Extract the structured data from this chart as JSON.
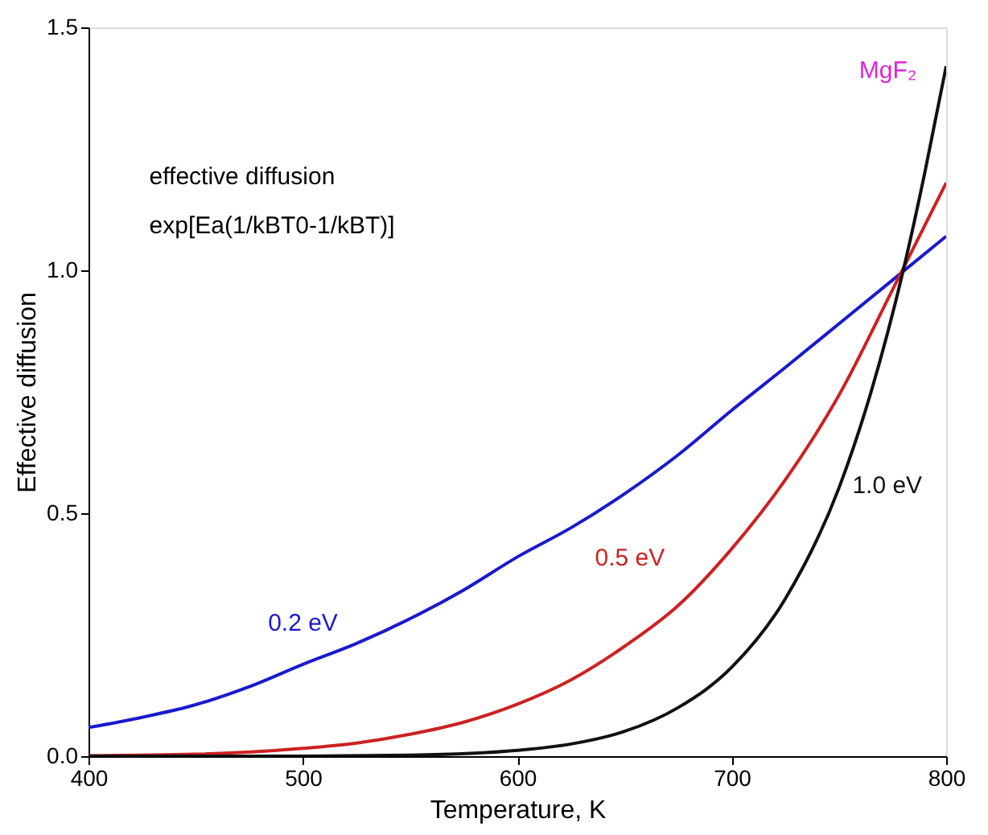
{
  "chart_data": {
    "type": "line",
    "xlabel": "Temperature, K",
    "ylabel": "Effective diffusion",
    "xlim": [
      400,
      800
    ],
    "xticks": [
      400,
      500,
      600,
      700,
      800
    ],
    "ylim": [
      0,
      1.5
    ],
    "yticks": [
      {
        "value": 0,
        "label": "0.0"
      },
      {
        "value": 0.5,
        "label": "0.5"
      },
      {
        "value": 1.0,
        "label": "1.0"
      },
      {
        "value": 1.5,
        "label": "1.5"
      }
    ],
    "grid": false,
    "marker": "none",
    "line_style": "solid",
    "annotations": [
      "MgF₂",
      "effective diffusion",
      "exp[Ea(1/kBT0-1/kBT)]"
    ],
    "series": [
      {
        "name": "0.2 eV",
        "color": "#1a1acc",
        "x": [
          400,
          425,
          450,
          475,
          500,
          525,
          550,
          575,
          600,
          625,
          650,
          675,
          700,
          725,
          750,
          775,
          800
        ],
        "values": [
          0.059,
          0.08,
          0.106,
          0.143,
          0.189,
          0.232,
          0.283,
          0.342,
          0.41,
          0.47,
          0.54,
          0.62,
          0.712,
          0.8,
          0.89,
          0.98,
          1.07
        ]
      },
      {
        "name": "0.5 eV",
        "color": "#cc2222",
        "x": [
          400,
          450,
          500,
          525,
          550,
          575,
          600,
          625,
          650,
          675,
          700,
          725,
          750,
          775,
          800
        ],
        "values": [
          0.001,
          0.004,
          0.016,
          0.027,
          0.045,
          0.07,
          0.107,
          0.157,
          0.226,
          0.31,
          0.427,
          0.569,
          0.743,
          0.96,
          1.18
        ]
      },
      {
        "name": "1.0 eV",
        "color": "#111111",
        "x": [
          400,
          500,
          550,
          600,
          625,
          650,
          675,
          700,
          725,
          750,
          765,
          780,
          790,
          800
        ],
        "values": [
          0.0,
          0.0,
          0.002,
          0.012,
          0.025,
          0.051,
          0.1,
          0.183,
          0.324,
          0.552,
          0.75,
          1.0,
          1.2,
          1.42
        ]
      }
    ]
  }
}
